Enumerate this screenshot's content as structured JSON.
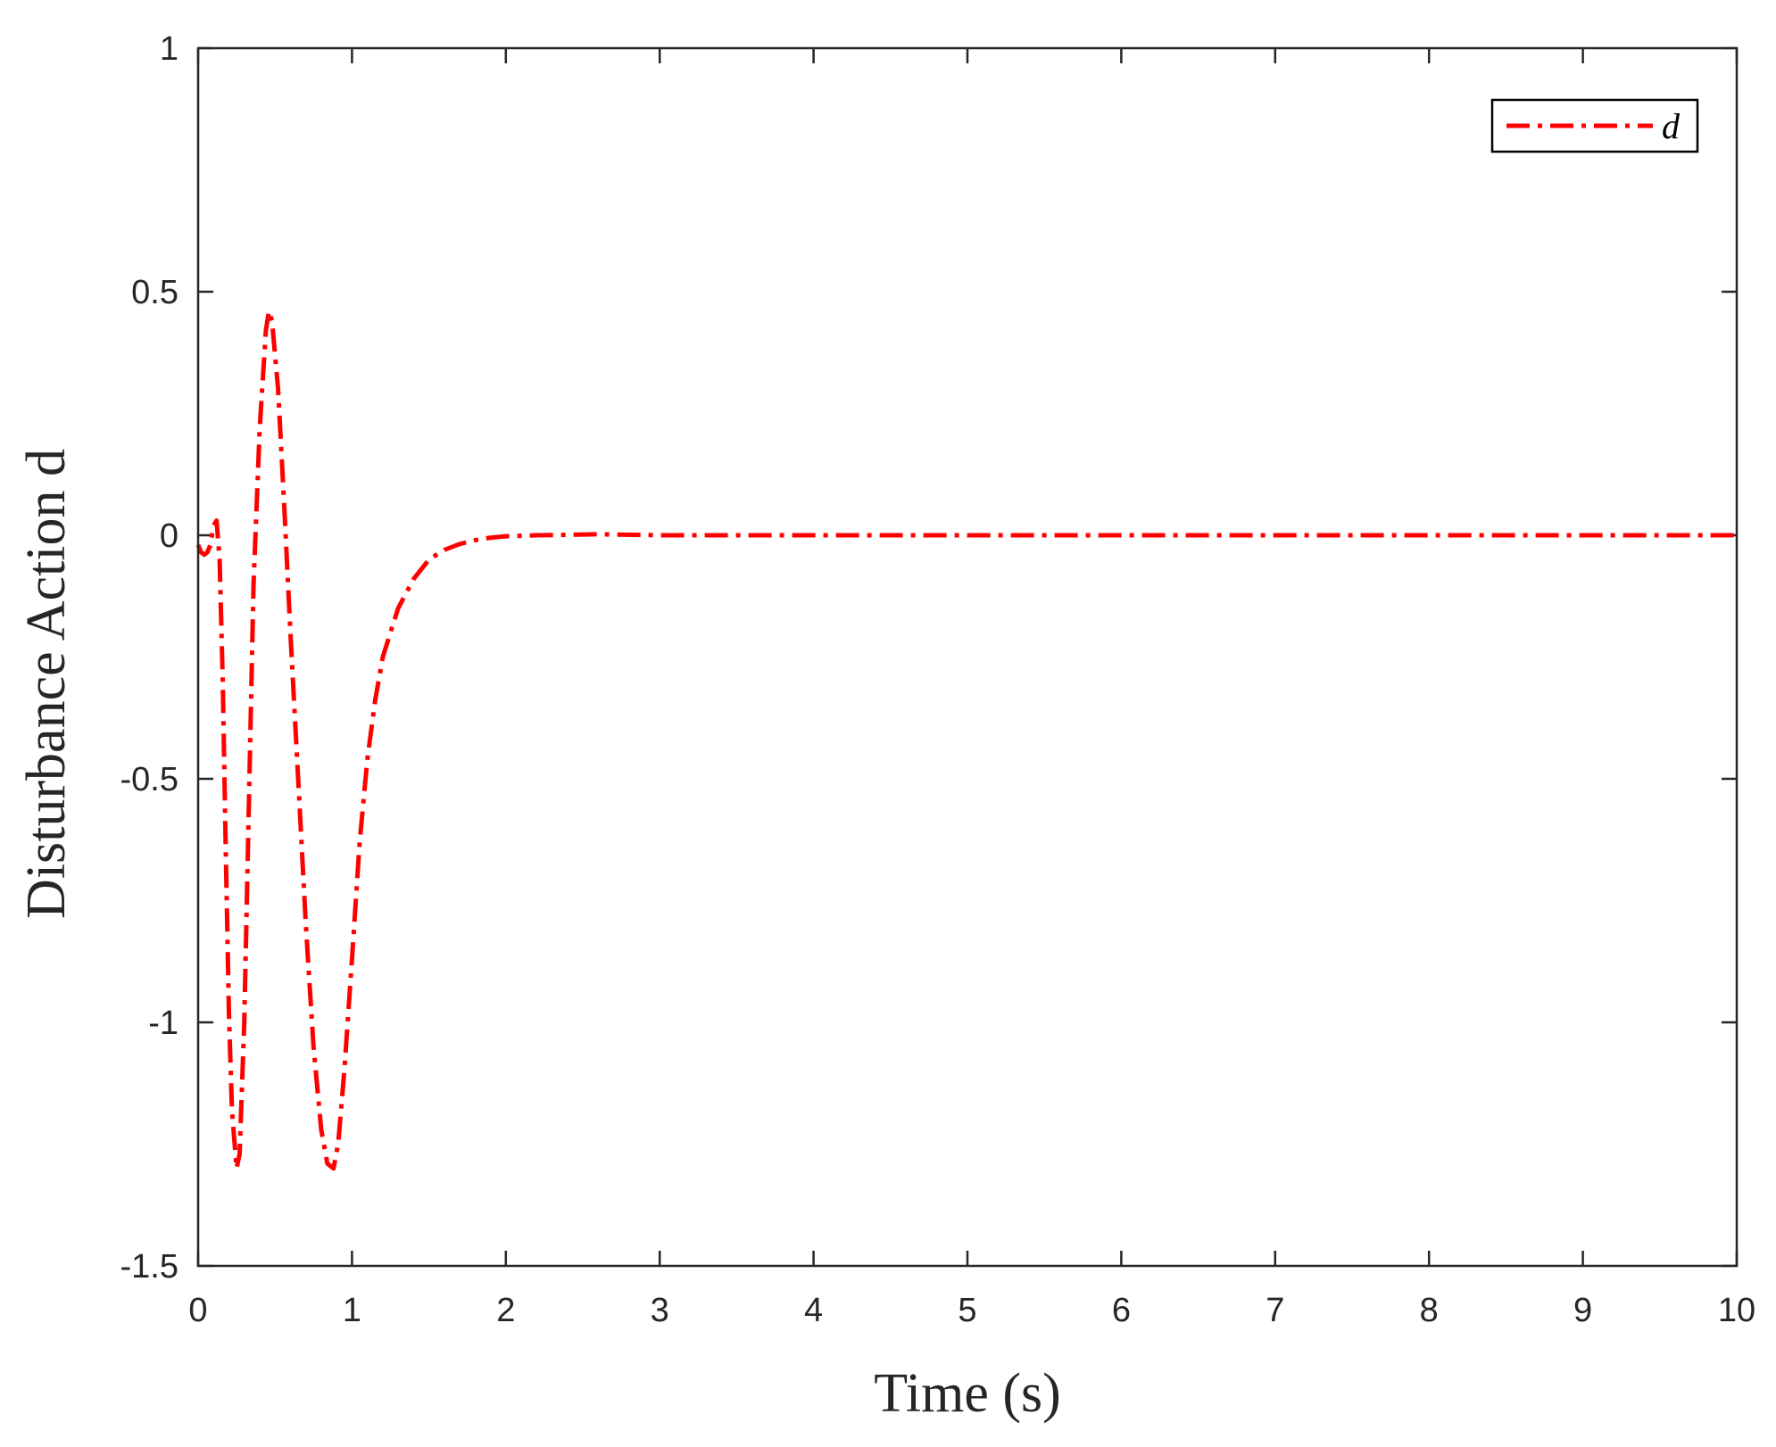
{
  "chart_data": {
    "type": "line",
    "title": "",
    "xlabel": "Time (s)",
    "ylabel": "Disturbance Action d",
    "xlim": [
      0,
      10
    ],
    "ylim": [
      -1.5,
      1
    ],
    "xticks": [
      "0",
      "1",
      "2",
      "3",
      "4",
      "5",
      "6",
      "7",
      "8",
      "9",
      "10"
    ],
    "yticks": [
      "1",
      "0.5",
      "0",
      "-0.5",
      "-1",
      "-1.5"
    ],
    "grid": false,
    "legend_position": "top-right",
    "series": [
      {
        "name": "d",
        "color": "#ff0000",
        "line_style": "dash-dot",
        "points": [
          [
            0,
            -0.02
          ],
          [
            0.02,
            -0.035
          ],
          [
            0.04,
            -0.04
          ],
          [
            0.06,
            -0.035
          ],
          [
            0.08,
            -0.02
          ],
          [
            0.1,
            0.02
          ],
          [
            0.12,
            0.03
          ],
          [
            0.14,
            -0.05
          ],
          [
            0.16,
            -0.3
          ],
          [
            0.18,
            -0.65
          ],
          [
            0.2,
            -0.98
          ],
          [
            0.22,
            -1.18
          ],
          [
            0.25,
            -1.3
          ],
          [
            0.27,
            -1.27
          ],
          [
            0.3,
            -1.0
          ],
          [
            0.33,
            -0.55
          ],
          [
            0.36,
            -0.1
          ],
          [
            0.4,
            0.22
          ],
          [
            0.44,
            0.42
          ],
          [
            0.46,
            0.46
          ],
          [
            0.48,
            0.44
          ],
          [
            0.52,
            0.3
          ],
          [
            0.56,
            0.06
          ],
          [
            0.6,
            -0.2
          ],
          [
            0.65,
            -0.5
          ],
          [
            0.7,
            -0.8
          ],
          [
            0.75,
            -1.05
          ],
          [
            0.8,
            -1.22
          ],
          [
            0.84,
            -1.29
          ],
          [
            0.88,
            -1.3
          ],
          [
            0.91,
            -1.25
          ],
          [
            0.95,
            -1.1
          ],
          [
            1.0,
            -0.87
          ],
          [
            1.05,
            -0.63
          ],
          [
            1.1,
            -0.46
          ],
          [
            1.15,
            -0.34
          ],
          [
            1.2,
            -0.25
          ],
          [
            1.3,
            -0.15
          ],
          [
            1.4,
            -0.09
          ],
          [
            1.5,
            -0.05
          ],
          [
            1.6,
            -0.03
          ],
          [
            1.7,
            -0.018
          ],
          [
            1.8,
            -0.01
          ],
          [
            1.9,
            -0.005
          ],
          [
            2.0,
            -0.002
          ],
          [
            2.2,
            0.0
          ],
          [
            2.6,
            0.002
          ],
          [
            3.0,
            0.0
          ],
          [
            4.0,
            0.0
          ],
          [
            5.0,
            0.0
          ],
          [
            6.0,
            0.0
          ],
          [
            7.0,
            0.0
          ],
          [
            8.0,
            0.0
          ],
          [
            9.0,
            0.0
          ],
          [
            10.0,
            0.0
          ]
        ]
      }
    ]
  }
}
